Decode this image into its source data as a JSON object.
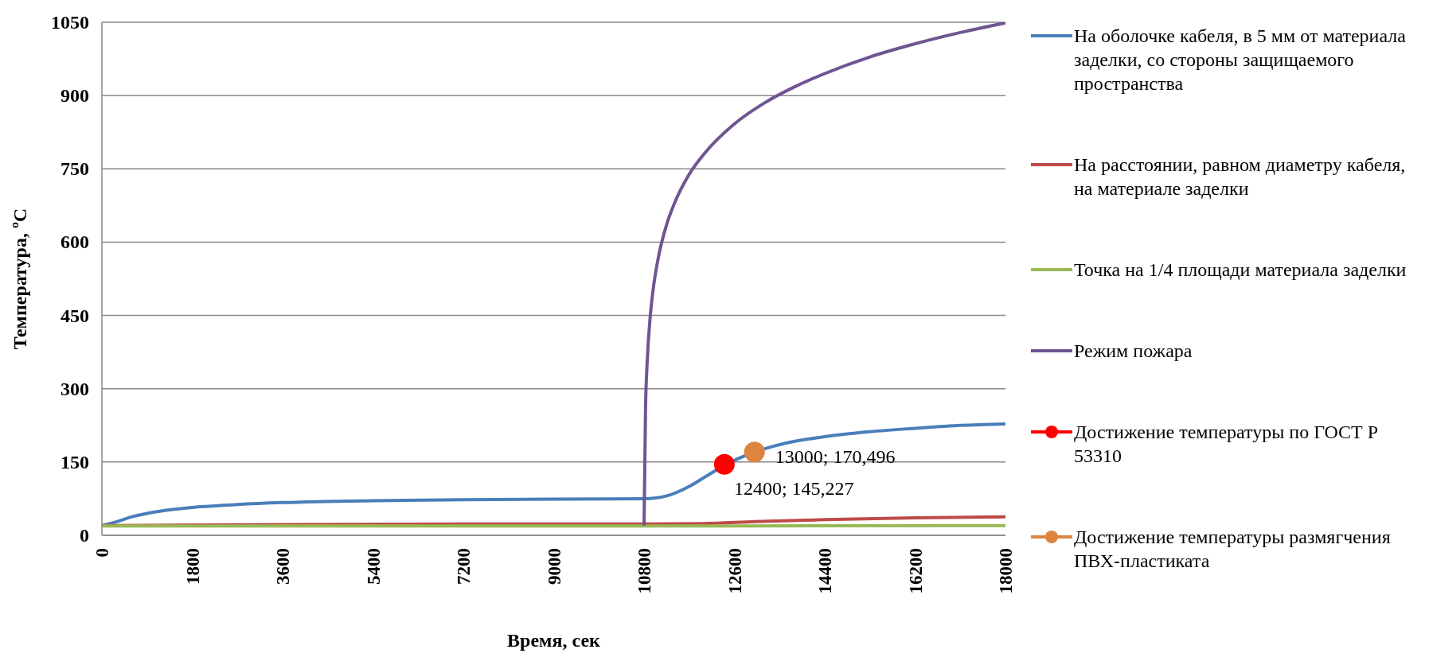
{
  "chart_data": {
    "type": "line",
    "xlabel": "Время, сек",
    "ylabel": "Температура, ºC",
    "xlim": [
      0,
      18000
    ],
    "xticks": [
      0,
      1800,
      3600,
      5400,
      7200,
      9000,
      10800,
      12600,
      14400,
      16200,
      18000
    ],
    "ylim": [
      0,
      1050
    ],
    "yticks": [
      0,
      150,
      300,
      450,
      600,
      750,
      900,
      1050
    ],
    "grid": "y",
    "legend": "right",
    "marker": "none",
    "line_style": "solid",
    "series": [
      {
        "name": "На оболочке кабеля, в 5 мм от материала заделки, со стороны защищаемого пространства",
        "color": "#4a7ebb",
        "x": [
          0,
          300,
          600,
          1200,
          1800,
          2700,
          3600,
          5400,
          7200,
          9000,
          10800,
          11000,
          11300,
          11700,
          12100,
          12700,
          13400,
          13600,
          14400,
          15300,
          16200,
          17100,
          18000
        ],
        "values": [
          20,
          28,
          38,
          50,
          57,
          63,
          67,
          71,
          73,
          74,
          75,
          76,
          82,
          100,
          125,
          158,
          183,
          188,
          202,
          212,
          219,
          225,
          228
        ]
      },
      {
        "name": "На расстоянии, равном диаметру кабеля, на материале заделки",
        "color": "#be4b48",
        "x": [
          0,
          1800,
          3600,
          7200,
          10800,
          12000,
          13000,
          14400,
          16200,
          18000
        ],
        "values": [
          20,
          21,
          22,
          23,
          23,
          24,
          28,
          32,
          36,
          38
        ]
      },
      {
        "name": "Точка на 1/4 площади материала заделки",
        "color": "#98b954",
        "x": [
          0,
          9000,
          18000
        ],
        "values": [
          19,
          19,
          20
        ]
      },
      {
        "name": "Режим пожара",
        "color": "#6f5592",
        "x": [
          10800,
          10830,
          10860,
          10920,
          10980,
          11100,
          11250,
          11400,
          11700,
          12000,
          12600,
          13200,
          13800,
          14400,
          15300,
          16200,
          17100,
          18000
        ],
        "values": [
          20,
          261,
          349,
          444,
          502,
          576,
          636,
          678,
          739,
          781,
          842,
          885,
          918,
          945,
          979,
          1006,
          1029,
          1049
        ]
      },
      {
        "name": "Достижение температуры по ГОСТ Р 53310",
        "type": "scatter",
        "marker": "circle",
        "color": "#ff0000",
        "x": [
          12400
        ],
        "values": [
          145.227
        ],
        "value_labels": [
          "12400; 145,227"
        ]
      },
      {
        "name": "Достижение температуры размягчения ПВХ-пластиката",
        "type": "scatter",
        "marker": "circle",
        "color": "#dd843f",
        "x": [
          13000
        ],
        "values": [
          170.496
        ],
        "value_labels": [
          "13000; 170,496"
        ]
      }
    ]
  }
}
